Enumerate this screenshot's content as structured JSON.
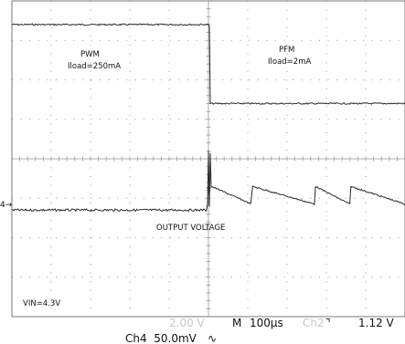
{
  "chart_data": {
    "type": "line",
    "x_unit": "µs",
    "x_per_div": 100,
    "xlim": [
      -500,
      500
    ],
    "ylim_div": [
      -4,
      4
    ],
    "trigger_time": 0,
    "series": [
      {
        "channel": "Ch2",
        "unit": "V",
        "volts_per_div": 2.0,
        "segments": [
          {
            "t_start": -500,
            "t_end": 0,
            "level_div": 3.4,
            "mode": "PWM"
          },
          {
            "t_start": 0,
            "t_end": 500,
            "level_div": 1.4,
            "mode": "PFM"
          }
        ]
      },
      {
        "channel": "Ch4",
        "unit": "mV",
        "volts_per_div": 50.0,
        "segments": [
          {
            "t_start": -500,
            "t_end": 0,
            "level_div": -1.3,
            "shape": "flat"
          },
          {
            "t_start": 0,
            "t_end": 500,
            "shape": "sawtooth",
            "ripple_peaks_us": [
              110,
              270,
              360,
              500
            ],
            "ripple_top_div": -0.7,
            "ripple_bottom_div": -1.15,
            "overshoot_div": 0.2
          }
        ]
      }
    ]
  },
  "annotations": {
    "pwm_mode": "PWM",
    "pwm_load": "Iload=250mA",
    "pfm_mode": "PFM",
    "pfm_load": "Iload=2mA",
    "output_voltage": "OUTPUT VOLTAGE",
    "vin": "VIN=4.3V"
  },
  "status_bar": {
    "ch2_scale": "2.00 V",
    "timebase_label": "M",
    "timebase_value": "100µs",
    "trigger_source": "Ch2",
    "trigger_slope_icon": "falling-edge-icon",
    "trigger_slope_glyph": "⌝",
    "trigger_level": "1.12 V",
    "ch4_scale": "Ch4  50.0mV",
    "ch4_coupling_glyph": "∿"
  },
  "markers": {
    "ch4_ground_marker": "4→",
    "trigger_marker": "T"
  },
  "colors": {
    "trace": "#2a2a2a",
    "grid": "#9a9a9a",
    "background": "#ffffff"
  }
}
